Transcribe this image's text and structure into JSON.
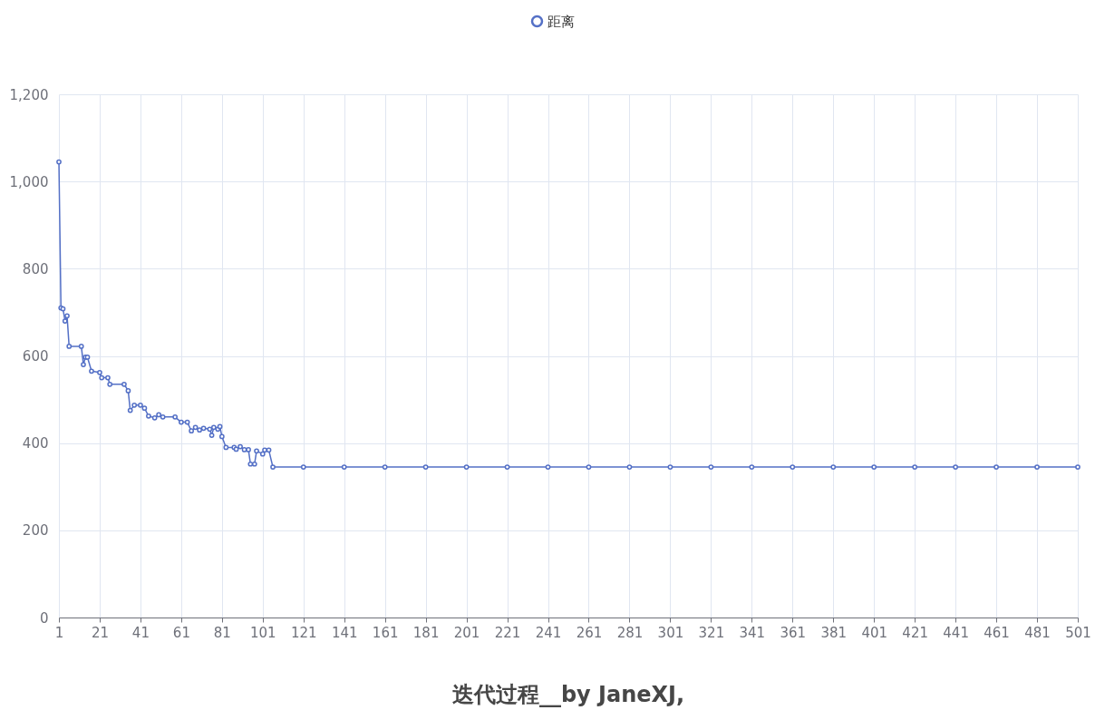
{
  "chart_data": {
    "type": "line",
    "title": "迭代过程__by JaneXJ,",
    "x": [
      1,
      2,
      3,
      4,
      5,
      6,
      12,
      13,
      14,
      15,
      17,
      21,
      22,
      25,
      26,
      33,
      35,
      36,
      38,
      41,
      43,
      45,
      48,
      50,
      52,
      58,
      61,
      64,
      66,
      68,
      70,
      72,
      75,
      76,
      77,
      79,
      80,
      81,
      83,
      87,
      88,
      90,
      92,
      94,
      95,
      97,
      98,
      101,
      102,
      104,
      106,
      121,
      141,
      161,
      181,
      201,
      221,
      241,
      261,
      281,
      301,
      321,
      341,
      361,
      381,
      401,
      421,
      441,
      461,
      481,
      501
    ],
    "series": [
      {
        "name": "距离",
        "color": "#5470c6",
        "values": [
          1045,
          710,
          708,
          680,
          692,
          622,
          622,
          580,
          597,
          597,
          565,
          562,
          550,
          550,
          535,
          535,
          520,
          475,
          487,
          487,
          480,
          462,
          458,
          465,
          460,
          460,
          448,
          448,
          428,
          436,
          430,
          434,
          432,
          418,
          436,
          432,
          438,
          415,
          390,
          390,
          386,
          392,
          385,
          385,
          352,
          352,
          382,
          375,
          384,
          384,
          345,
          345,
          345,
          345,
          345,
          345,
          345,
          345,
          345,
          345,
          345,
          345,
          345,
          345,
          345,
          345,
          345,
          345,
          345,
          345,
          345
        ]
      }
    ],
    "xlim": [
      1,
      501
    ],
    "xticks": [
      1,
      21,
      41,
      61,
      81,
      101,
      121,
      141,
      161,
      181,
      201,
      221,
      241,
      261,
      281,
      301,
      321,
      341,
      361,
      381,
      401,
      421,
      441,
      461,
      481,
      501
    ],
    "ylim": [
      0,
      1200
    ],
    "yticks": [
      0,
      200,
      400,
      600,
      800,
      {
        "value": 1000,
        "label": "1,000"
      },
      {
        "value": 1200,
        "label": "1,200"
      }
    ],
    "grid": true,
    "legend": "top",
    "marker": "circle",
    "line_style": "solid"
  }
}
